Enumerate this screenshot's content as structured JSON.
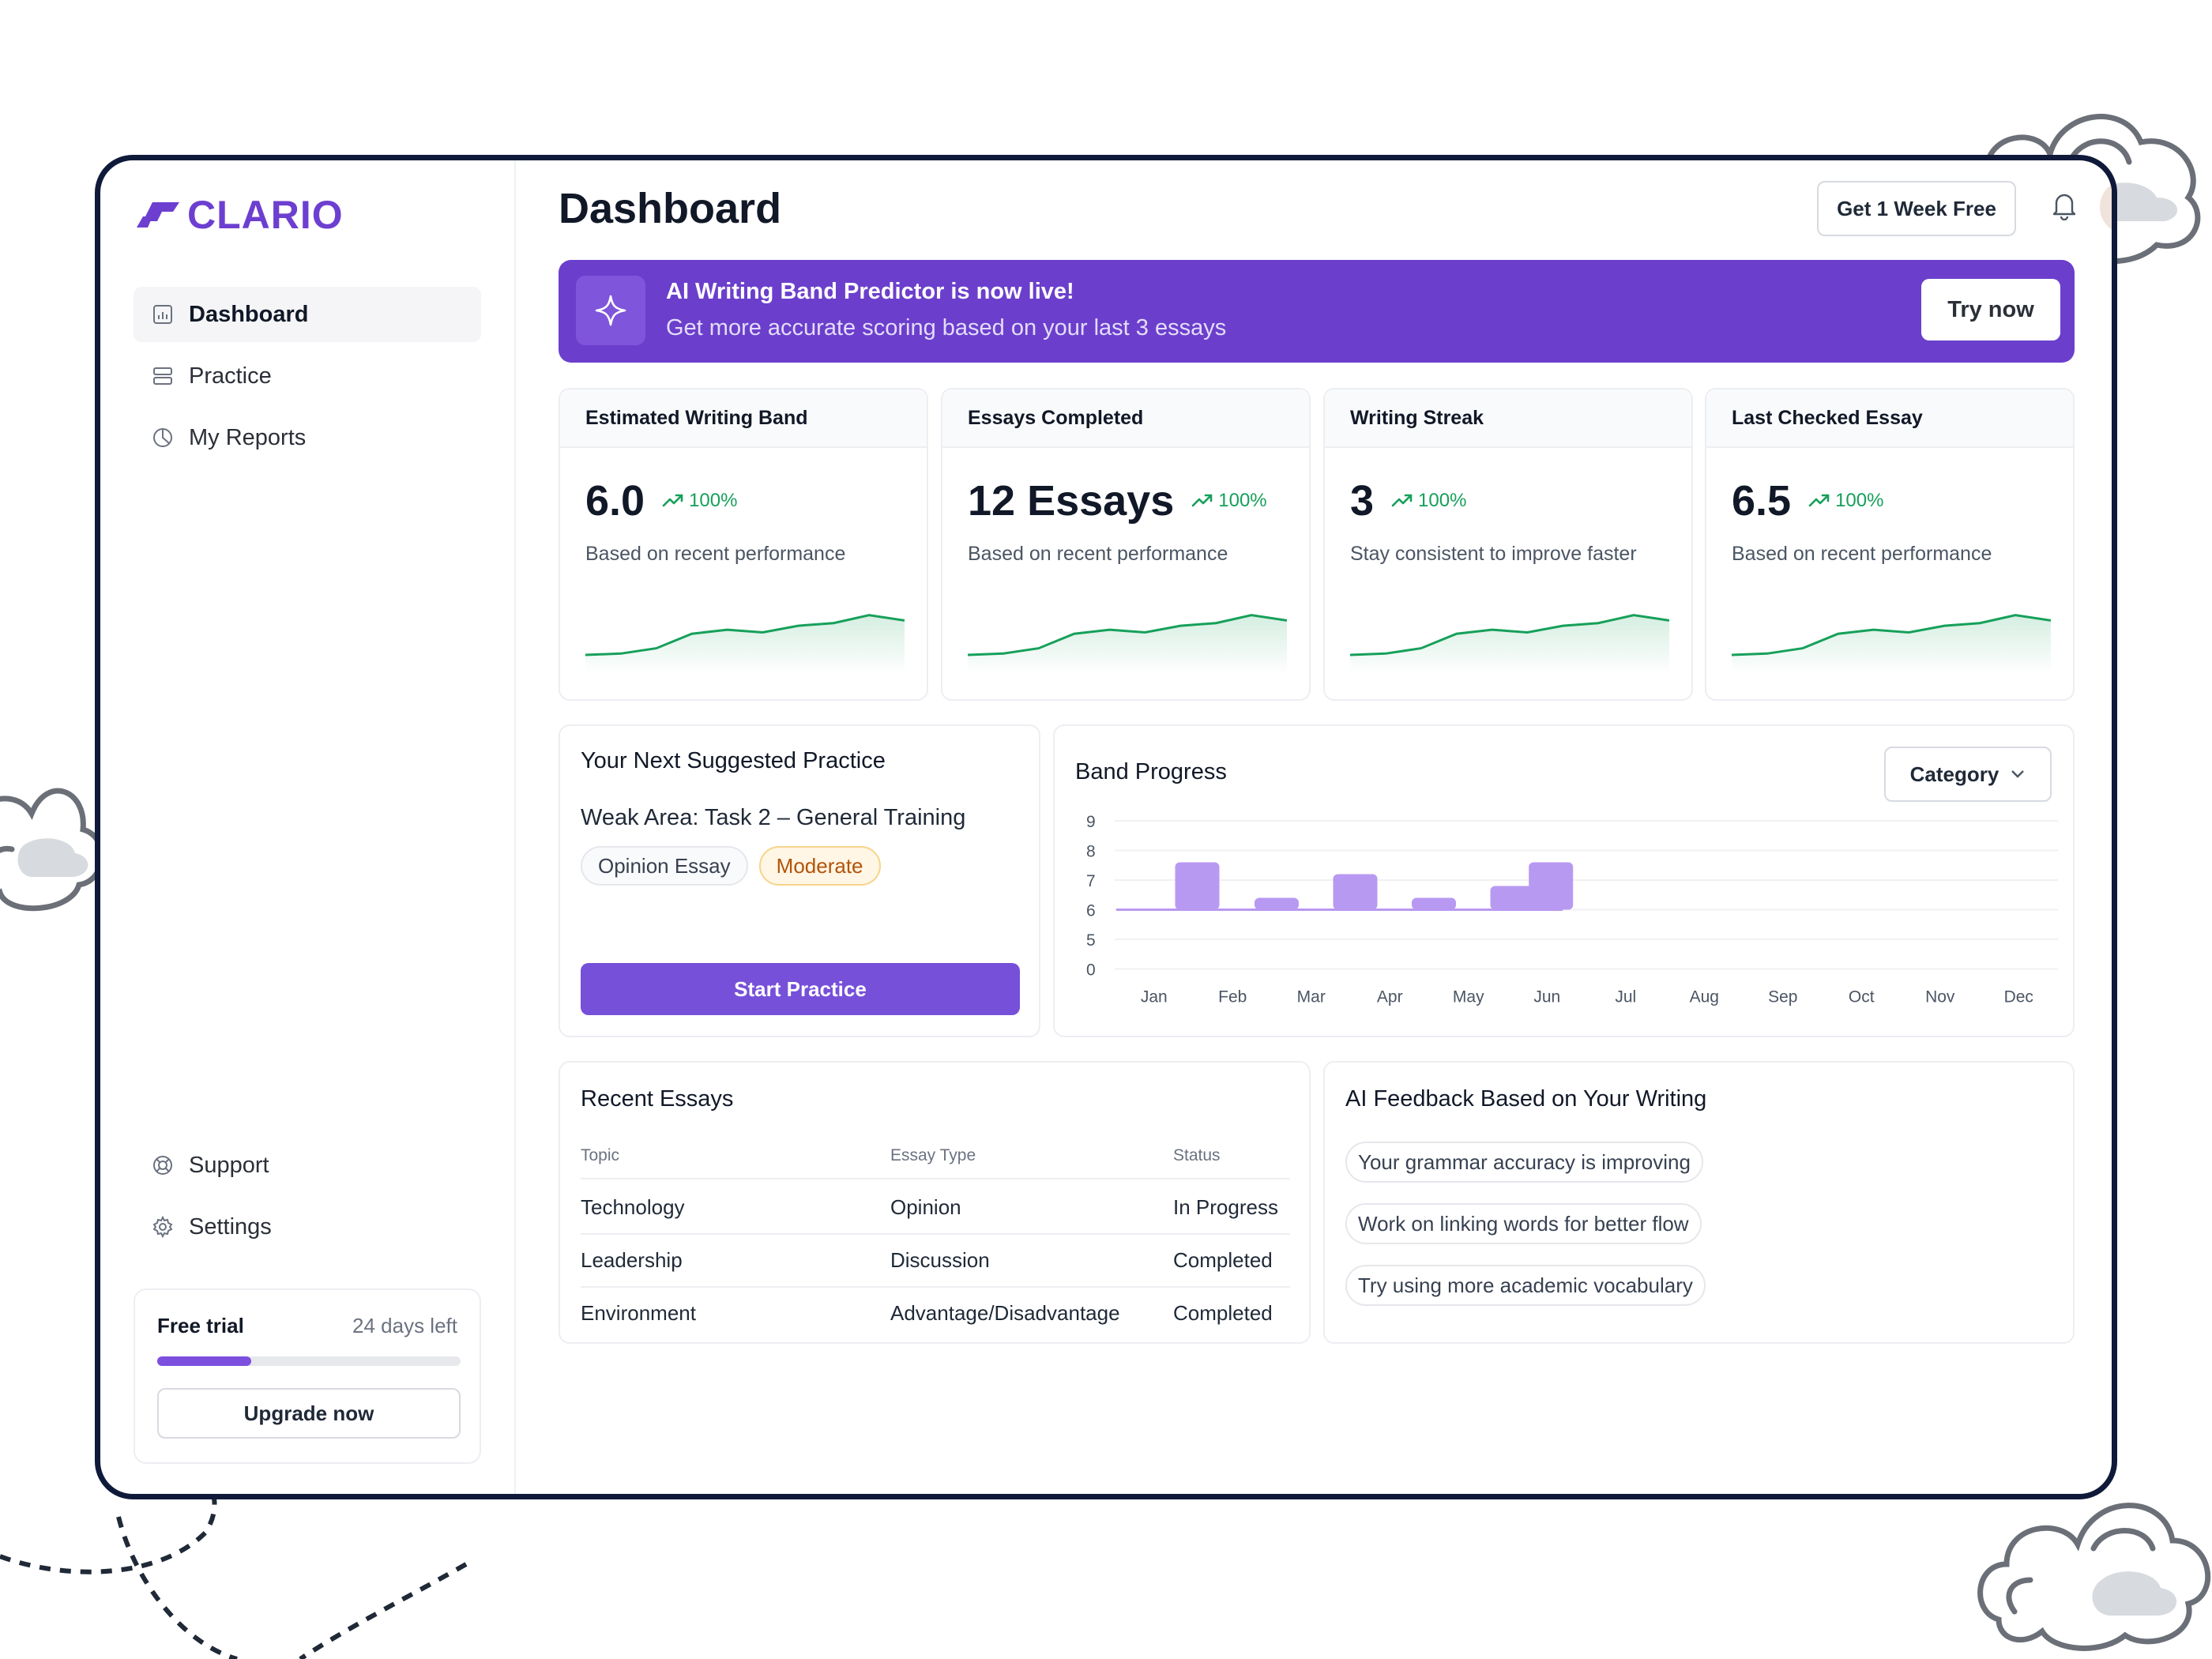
{
  "brand": {
    "name": "CLARIO",
    "accent": "#6d3fd0"
  },
  "sidebar": {
    "nav": [
      {
        "label": "Dashboard",
        "icon": "bar-chart-icon",
        "active": true
      },
      {
        "label": "Practice",
        "icon": "layers-icon",
        "active": false
      },
      {
        "label": "My Reports",
        "icon": "pie-chart-icon",
        "active": false
      }
    ],
    "bottom_nav": [
      {
        "label": "Support",
        "icon": "lifebuoy-icon"
      },
      {
        "label": "Settings",
        "icon": "gear-icon"
      }
    ],
    "trial": {
      "title": "Free trial",
      "days_left": "24 days left",
      "progress": 0.31,
      "button": "Upgrade now"
    }
  },
  "header": {
    "title": "Dashboard",
    "trial_button": "Get 1 Week Free",
    "notification_icon": "bell-icon",
    "avatar_icon": "user-avatar"
  },
  "banner": {
    "icon": "sparkle-icon",
    "title": "AI Writing Band Predictor is now live!",
    "subtitle": "Get more accurate scoring based on your last 3 essays",
    "button": "Try now",
    "color": "#6b3fcc"
  },
  "stats": [
    {
      "title": "Estimated Writing Band",
      "value": "6.0",
      "change": "100%",
      "desc": "Based on recent performance"
    },
    {
      "title": "Essays Completed",
      "value": "12 Essays",
      "change": "100%",
      "desc": "Based on recent performance"
    },
    {
      "title": "Writing Streak",
      "value": "3",
      "change": "100%",
      "desc": "Stay consistent to improve faster"
    },
    {
      "title": "Last Checked Essay",
      "value": "6.5",
      "change": "100%",
      "desc": "Based on recent performance"
    }
  ],
  "suggested": {
    "title": "Your Next Suggested Practice",
    "weak_area": "Weak Area: Task 2  – General Training",
    "tags": [
      "Opinion Essay",
      "Moderate"
    ],
    "button": "Start Practice"
  },
  "band_progress": {
    "title": "Band Progress",
    "dropdown": "Category"
  },
  "chart_data": {
    "type": "bar",
    "title": "Band Progress",
    "categories": [
      "Jan",
      "Feb",
      "Mar",
      "Apr",
      "May",
      "Jun",
      "Jul",
      "Aug",
      "Sep",
      "Oct",
      "Nov",
      "Dec"
    ],
    "y_ticks": [
      "0",
      "5",
      "6",
      "7",
      "8",
      "9"
    ],
    "bars": [
      {
        "x": "Jan",
        "value": 7.6
      },
      {
        "x": "Mar",
        "value": 6.4
      },
      {
        "x": "Apr",
        "value": 7.2
      },
      {
        "x": "May",
        "value": 6.4
      },
      {
        "x": "Jun",
        "value": 6.8
      },
      {
        "x": "Jun",
        "value": 7.6
      }
    ],
    "baseline": 6,
    "color": "#b899f2",
    "grid": true
  },
  "recent_essays": {
    "title": "Recent Essays",
    "columns": [
      "Topic",
      "Essay Type",
      "Status"
    ],
    "rows": [
      [
        "Technology",
        "Opinion",
        "In Progress"
      ],
      [
        "Leadership",
        "Discussion",
        "Completed"
      ],
      [
        "Environment",
        "Advantage/Disadvantage",
        "Completed"
      ]
    ]
  },
  "ai_feedback": {
    "title": "AI Feedback Based on Your Writing",
    "items": [
      "Your grammar accuracy is improving",
      "Work on linking words for better flow",
      "Try using more academic vocabulary"
    ]
  },
  "sparkline": [
    62,
    60,
    52,
    30,
    24,
    28,
    18,
    14,
    2,
    10
  ]
}
